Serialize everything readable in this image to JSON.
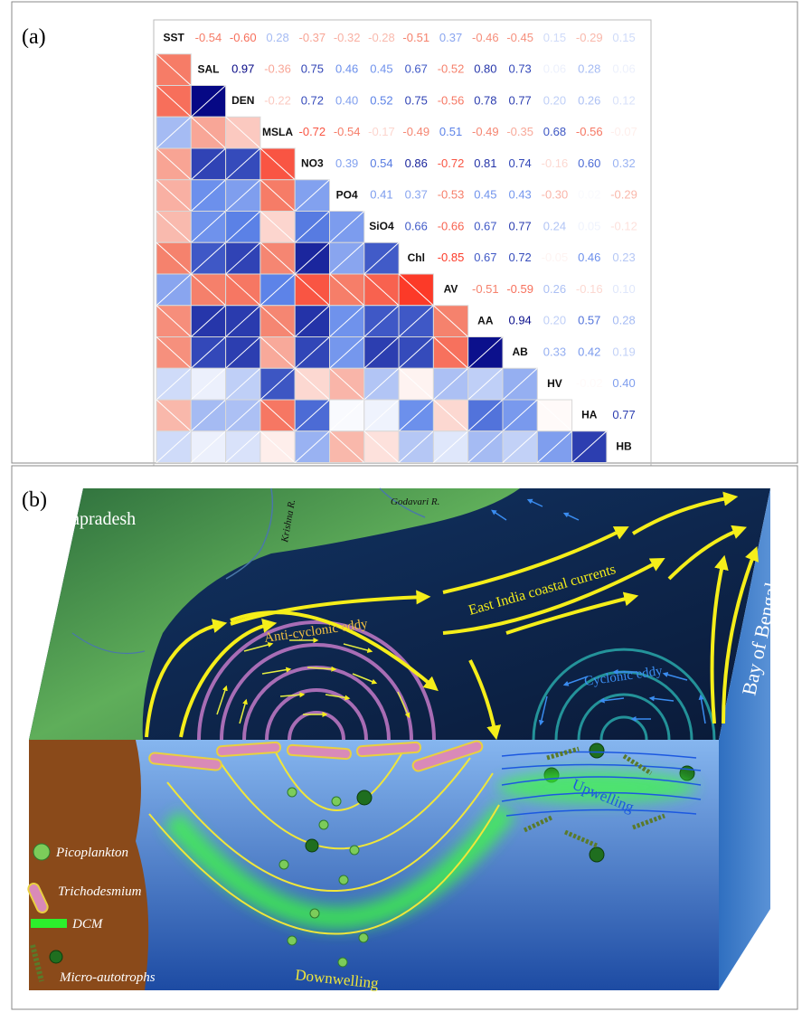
{
  "chart_data": {
    "type": "heatmap",
    "panel_label": "(a)",
    "labels": [
      "SST",
      "SAL",
      "DEN",
      "MSLA",
      "NO3",
      "PO4",
      "SiO4",
      "Chl",
      "AV",
      "AA",
      "AB",
      "HV",
      "HA",
      "HB"
    ],
    "rows": [
      {
        "values": [
          -0.54,
          -0.6,
          0.28,
          -0.37,
          -0.32,
          -0.28,
          -0.51,
          0.37,
          -0.46,
          -0.45,
          0.15,
          -0.29,
          0.15
        ],
        "value_labels": [
          "-0.54",
          "-0.60",
          "0.28",
          "-0.37",
          "-0.32",
          "-0.28",
          "-0.51",
          "0.37",
          "-0.46",
          "-0.45",
          "0.15",
          "-0.29",
          "0.15"
        ]
      },
      {
        "values": [
          0.97,
          -0.36,
          0.75,
          0.46,
          0.45,
          0.67,
          -0.52,
          0.8,
          0.73,
          0.06,
          0.28,
          0.06
        ],
        "value_labels": [
          "0.97",
          "-0.36",
          "0.75",
          "0.46",
          "0.45",
          "0.67",
          "-0.52",
          "0.80",
          "0.73",
          "0.06",
          "0.28",
          "0.06"
        ]
      },
      {
        "values": [
          -0.22,
          0.72,
          0.4,
          0.52,
          0.75,
          -0.56,
          0.78,
          0.77,
          0.2,
          0.26,
          0.12
        ],
        "value_labels": [
          "-0.22",
          "0.72",
          "0.40",
          "0.52",
          "0.75",
          "-0.56",
          "0.78",
          "0.77",
          "0.20",
          "0.26",
          "0.12"
        ]
      },
      {
        "values": [
          -0.72,
          -0.54,
          -0.17,
          -0.49,
          0.51,
          -0.49,
          -0.35,
          0.68,
          -0.56,
          -0.07
        ],
        "value_labels": [
          "-0.72",
          "-0.54",
          "-0.17",
          "-0.49",
          "0.51",
          "-0.49",
          "-0.35",
          "0.68",
          "-0.56",
          "-0.07"
        ]
      },
      {
        "values": [
          0.39,
          0.54,
          0.86,
          -0.72,
          0.81,
          0.74,
          -0.16,
          0.6,
          0.32
        ],
        "value_labels": [
          "0.39",
          "0.54",
          "0.86",
          "-0.72",
          "0.81",
          "0.74",
          "-0.16",
          "0.60",
          "0.32"
        ]
      },
      {
        "values": [
          0.41,
          0.37,
          -0.53,
          0.45,
          0.43,
          -0.3,
          0.02,
          -0.29
        ],
        "value_labels": [
          "0.41",
          "0.37",
          "-0.53",
          "0.45",
          "0.43",
          "-0.30",
          "0.02",
          "-0.29"
        ]
      },
      {
        "values": [
          0.66,
          -0.66,
          0.67,
          0.77,
          0.24,
          0.05,
          -0.12
        ],
        "value_labels": [
          "0.66",
          "-0.66",
          "0.67",
          "0.77",
          "0.24",
          "0.05",
          "-0.12"
        ]
      },
      {
        "values": [
          -0.85,
          0.67,
          0.72,
          -0.05,
          0.46,
          0.23
        ],
        "value_labels": [
          "-0.85",
          "0.67",
          "0.72",
          "-0.05",
          "0.46",
          "0.23"
        ]
      },
      {
        "values": [
          -0.51,
          -0.59,
          0.26,
          -0.16,
          0.1
        ],
        "value_labels": [
          "-0.51",
          "-0.59",
          "0.26",
          "-0.16",
          "0.10"
        ]
      },
      {
        "values": [
          0.94,
          0.2,
          0.57,
          0.28
        ],
        "value_labels": [
          "0.94",
          "0.20",
          "0.57",
          "0.28"
        ]
      },
      {
        "values": [
          0.33,
          0.42,
          0.19
        ],
        "value_labels": [
          "0.33",
          "0.42",
          "0.19"
        ]
      },
      {
        "values": [
          -0.02,
          0.4
        ],
        "value_labels": [
          "-0.02",
          "0.40"
        ]
      },
      {
        "values": [
          0.77
        ],
        "value_labels": [
          "0.77"
        ]
      },
      {
        "values": [],
        "value_labels": []
      }
    ],
    "clim": [
      -1,
      1
    ],
    "colors": [
      "#ff1a0a",
      "#f5846f",
      "#ffffff",
      "#5f86ea",
      "#00007f"
    ]
  },
  "diagram": {
    "panel_label": "(b)",
    "labels": {
      "region": "Andrapradesh",
      "river_1": "Krishna R.",
      "river_2": "Godavari R.",
      "current": "East India coastal currents",
      "sea": "Bay of Bengal",
      "anticyclonic": "Anti-cyclonic eddy",
      "cyclonic": "Cyclonic eddy",
      "upwelling": "Upwelling",
      "downwelling": "Downwelling"
    },
    "legend": [
      "Picoplankton",
      "Trichodesmium",
      "DCM",
      "Micro-autotrophs"
    ]
  }
}
